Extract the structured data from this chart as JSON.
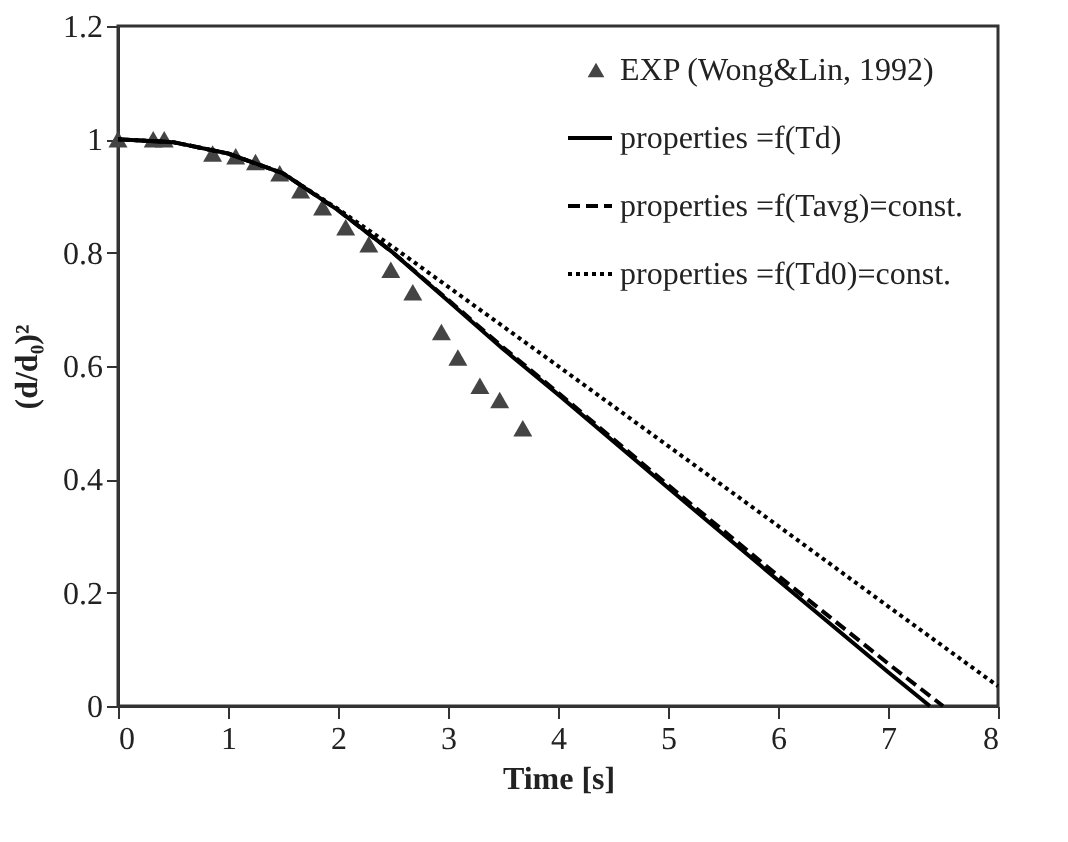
{
  "chart_data": {
    "type": "line",
    "xlabel": "Time [s]",
    "ylabel": "(d/d₀)²",
    "xlim": [
      0,
      8
    ],
    "xticks": [
      0,
      1,
      2,
      3,
      4,
      5,
      6,
      7,
      8
    ],
    "ylim": [
      0,
      1.2
    ],
    "yticks": [
      0,
      0.2,
      0.4,
      0.6,
      0.8,
      1,
      1.2
    ],
    "grid": false,
    "legend": "top right",
    "series": [
      {
        "name": "EXP (Wong&Lin, 1992)",
        "type": "scatter",
        "marker": "triangle",
        "color": "#444444",
        "x": [
          0,
          0.32,
          0.42,
          0.86,
          1.07,
          1.25,
          1.47,
          1.66,
          1.86,
          2.07,
          2.28,
          2.48,
          2.68,
          2.94,
          3.09,
          3.29,
          3.47,
          3.68
        ],
        "values": [
          1.0,
          1.0,
          1.0,
          0.975,
          0.97,
          0.96,
          0.94,
          0.91,
          0.88,
          0.845,
          0.815,
          0.77,
          0.73,
          0.66,
          0.615,
          0.565,
          0.54,
          0.49
        ]
      },
      {
        "name": "properties =f(Td)",
        "line_style": "solid",
        "color": "#000000",
        "x": [
          0,
          0.5,
          1,
          1.5,
          2,
          2.5,
          3,
          3.5,
          4,
          5,
          6,
          7,
          7.38
        ],
        "values": [
          1.0,
          0.995,
          0.975,
          0.94,
          0.875,
          0.8,
          0.715,
          0.63,
          0.55,
          0.385,
          0.222,
          0.06,
          0
        ]
      },
      {
        "name": "properties =f(Tavg)=const.",
        "line_style": "dashed",
        "color": "#000000",
        "x": [
          0,
          0.5,
          1,
          1.5,
          2,
          2.5,
          3,
          3.5,
          4,
          5,
          6,
          7,
          7.5
        ],
        "values": [
          1.0,
          0.995,
          0.975,
          0.94,
          0.875,
          0.8,
          0.717,
          0.633,
          0.553,
          0.39,
          0.23,
          0.075,
          0
        ]
      },
      {
        "name": "properties =f(Td0)=const.",
        "line_style": "dotted",
        "color": "#000000",
        "x": [
          0,
          0.5,
          1,
          1.5,
          2,
          2.5,
          3,
          3.5,
          4,
          5,
          6,
          7,
          8
        ],
        "values": [
          1.0,
          0.995,
          0.975,
          0.94,
          0.877,
          0.81,
          0.74,
          0.67,
          0.6,
          0.459,
          0.318,
          0.176,
          0.035
        ]
      }
    ]
  }
}
